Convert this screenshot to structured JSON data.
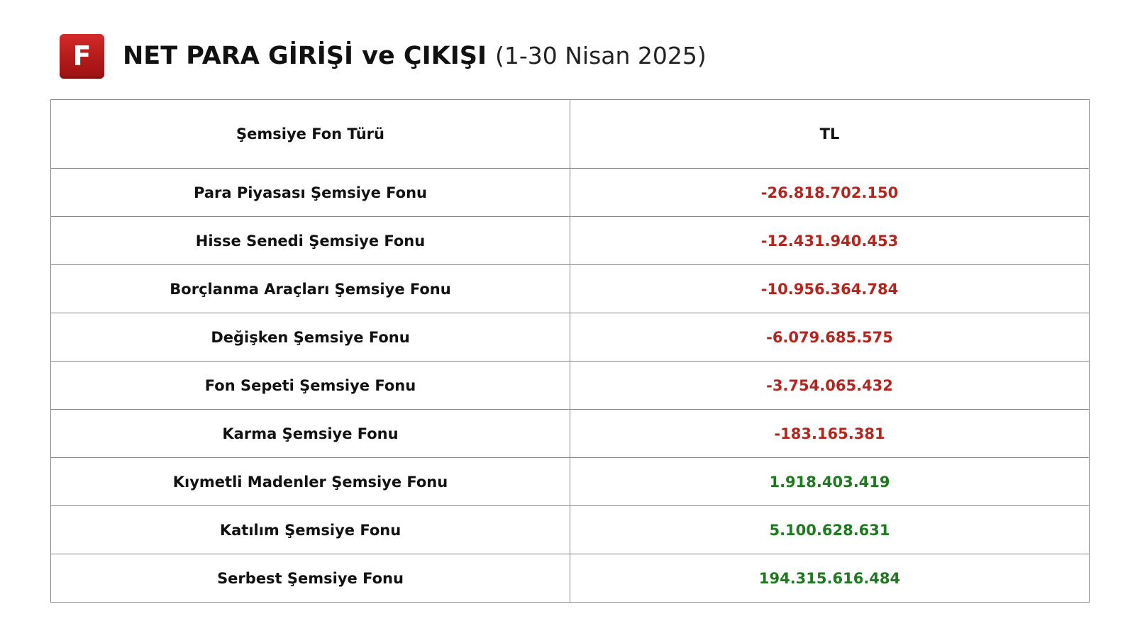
{
  "header": {
    "logo_letter": "F",
    "title_main": "NET PARA GİRİŞİ ve ÇIKIŞI",
    "title_period": "(1-30 Nisan 2025)"
  },
  "colors": {
    "logo_red": "#c4201f",
    "negative": "#b3261e",
    "positive": "#1e7a1e"
  },
  "table": {
    "columns": [
      "Şemsiye Fon Türü",
      "TL"
    ],
    "rows": [
      {
        "name": "Para Piyasası Şemsiye Fonu",
        "value": "-26.818.702.150",
        "sign": "neg"
      },
      {
        "name": "Hisse Senedi Şemsiye Fonu",
        "value": "-12.431.940.453",
        "sign": "neg"
      },
      {
        "name": "Borçlanma Araçları Şemsiye Fonu",
        "value": "-10.956.364.784",
        "sign": "neg"
      },
      {
        "name": "Değişken Şemsiye Fonu",
        "value": "-6.079.685.575",
        "sign": "neg"
      },
      {
        "name": "Fon Sepeti Şemsiye Fonu",
        "value": "-3.754.065.432",
        "sign": "neg"
      },
      {
        "name": "Karma Şemsiye Fonu",
        "value": "-183.165.381",
        "sign": "neg"
      },
      {
        "name": "Kıymetli Madenler Şemsiye Fonu",
        "value": "1.918.403.419",
        "sign": "pos"
      },
      {
        "name": "Katılım Şemsiye Fonu",
        "value": "5.100.628.631",
        "sign": "pos"
      },
      {
        "name": "Serbest Şemsiye Fonu",
        "value": "194.315.616.484",
        "sign": "pos"
      }
    ]
  }
}
